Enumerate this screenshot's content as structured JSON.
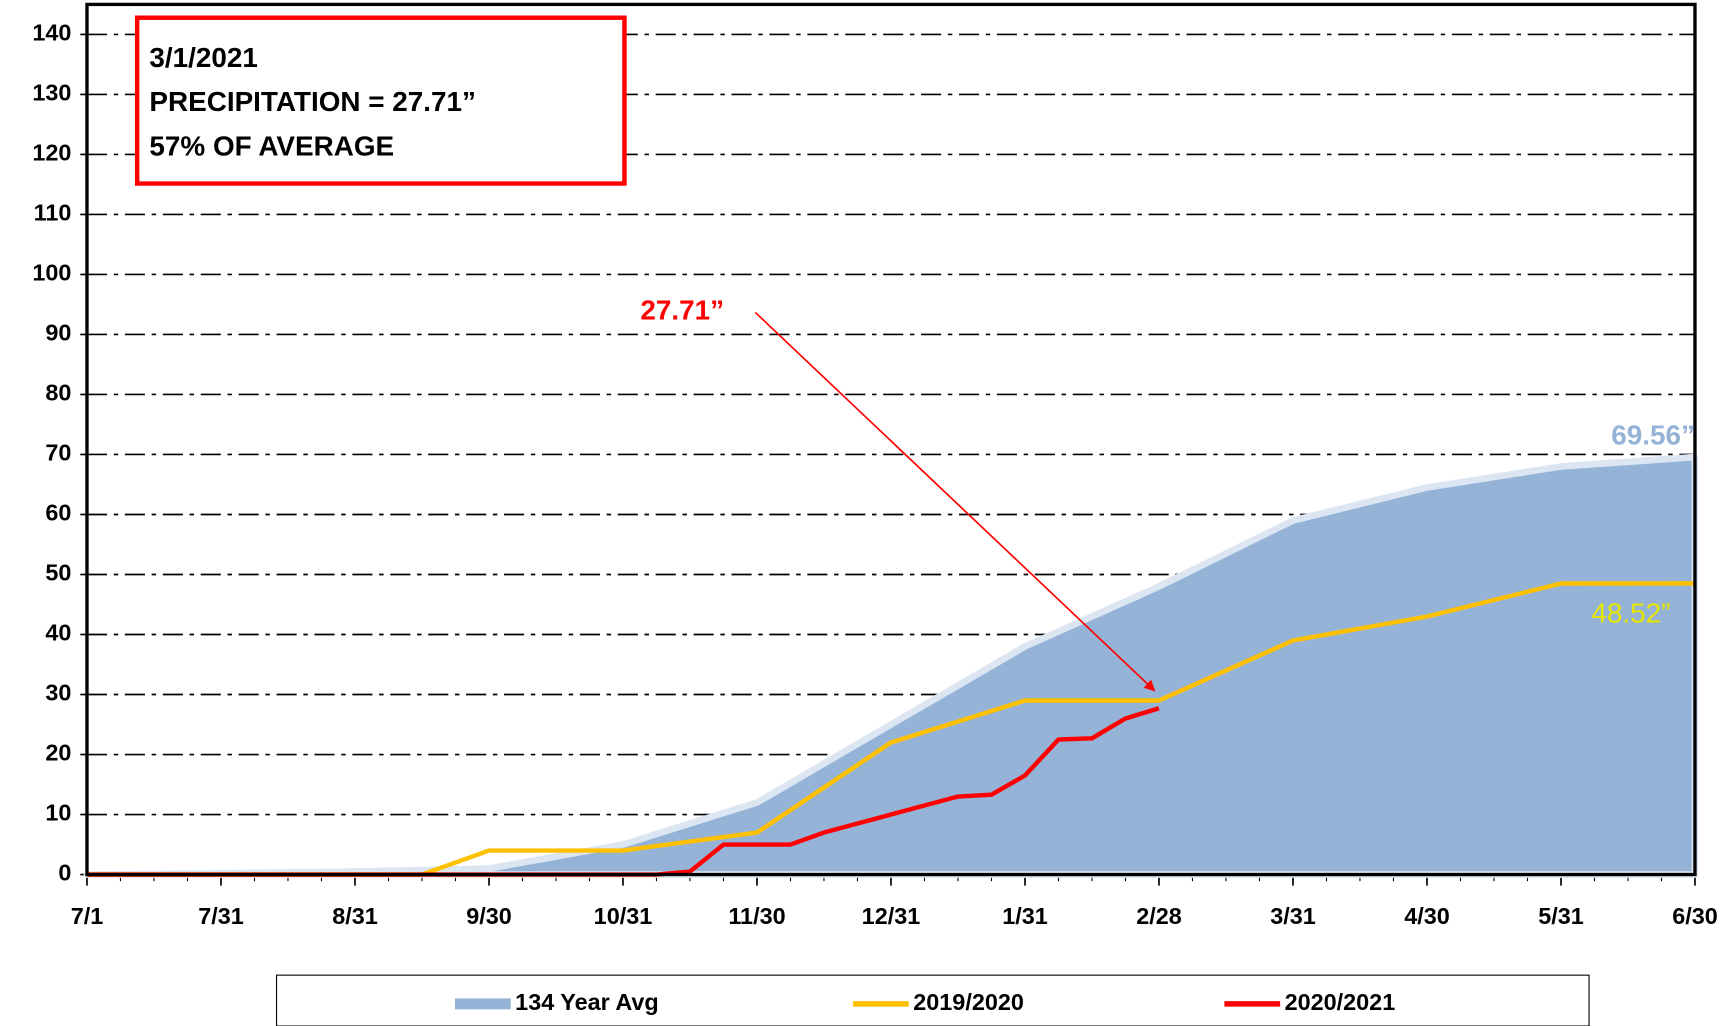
{
  "chart_data": {
    "type": "line",
    "annotation_box": [
      "3/1/2021",
      "PRECIPITATION = 27.71”",
      "57% OF AVERAGE"
    ],
    "xlim": [
      0,
      48
    ],
    "xticks": [
      {
        "value": 0,
        "label": "7/1"
      },
      {
        "value": 4,
        "label": "7/31"
      },
      {
        "value": 8,
        "label": "8/31"
      },
      {
        "value": 12,
        "label": "9/30"
      },
      {
        "value": 16,
        "label": "10/31"
      },
      {
        "value": 20,
        "label": "11/30"
      },
      {
        "value": 24,
        "label": "12/31"
      },
      {
        "value": 28,
        "label": "1/31"
      },
      {
        "value": 32,
        "label": "2/28"
      },
      {
        "value": 36,
        "label": "3/31"
      },
      {
        "value": 40,
        "label": "4/30"
      },
      {
        "value": 44,
        "label": "5/31"
      },
      {
        "value": 48,
        "label": "6/30"
      }
    ],
    "ylim": [
      0,
      145
    ],
    "yticks": [
      0,
      10,
      20,
      30,
      40,
      50,
      60,
      70,
      80,
      90,
      100,
      110,
      120,
      130,
      140
    ],
    "grid": true,
    "series": [
      {
        "name": "134 Year Avg",
        "style": "area",
        "color": "#95b3d7",
        "outline": "#dce6f2",
        "label_color": "#95b3d7",
        "x": [
          0,
          4,
          8,
          12,
          16,
          20,
          24,
          28,
          32,
          36,
          40,
          44,
          48
        ],
        "values": [
          0,
          0.2,
          0.5,
          1,
          5,
          12,
          25,
          38,
          48,
          59,
          64.5,
          68,
          69.56
        ],
        "value_labels": [
          null,
          null,
          null,
          null,
          null,
          null,
          null,
          null,
          null,
          null,
          null,
          null,
          "69.56”"
        ]
      },
      {
        "name": "2019/2020",
        "style": "line",
        "color": "#ffc000",
        "label_color": "#e6e600",
        "x": [
          0,
          10,
          12,
          16,
          20,
          24,
          28,
          32,
          36,
          40,
          44,
          48
        ],
        "values": [
          0,
          0,
          4,
          4,
          7,
          22,
          29,
          29,
          39,
          43,
          48.5,
          48.52
        ],
        "value_labels": [
          null,
          null,
          null,
          null,
          null,
          null,
          null,
          null,
          null,
          null,
          null,
          "48.52”"
        ]
      },
      {
        "name": "2020/2021",
        "style": "line",
        "color": "#ff0000",
        "label_color": "#ff0000",
        "x": [
          0,
          17,
          18,
          19,
          21,
          22,
          23,
          24,
          25,
          26,
          27,
          28,
          29,
          30,
          31,
          32
        ],
        "values": [
          0,
          0,
          0.5,
          5,
          5,
          7,
          8.5,
          10,
          11.5,
          13,
          13.3,
          16.5,
          22.5,
          22.7,
          26,
          27.71
        ],
        "value_labels": [
          null,
          null,
          null,
          null,
          null,
          null,
          null,
          null,
          null,
          null,
          null,
          null,
          null,
          null,
          null,
          "27.71”"
        ]
      }
    ]
  }
}
